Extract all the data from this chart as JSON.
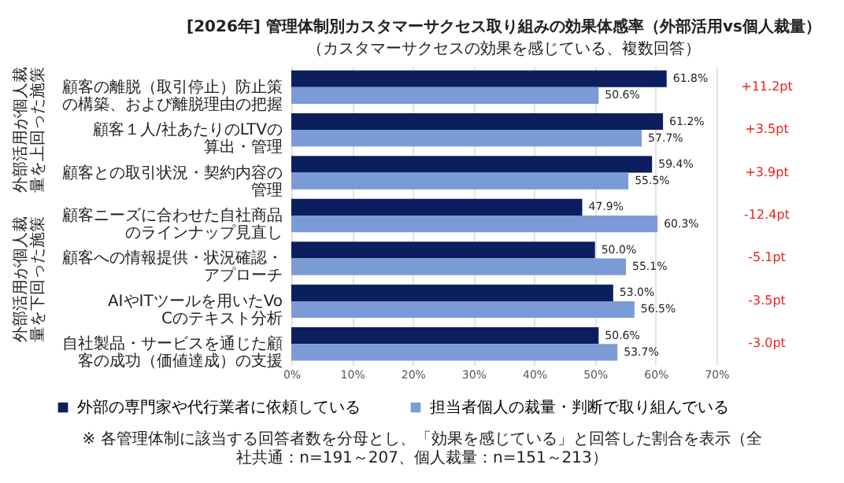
{
  "chart_data": {
    "type": "bar",
    "orientation": "horizontal",
    "title": "[2026年] 管理体制別カスタマーサクセス取り組みの効果体感率（外部活用vs個人裁量）",
    "subtitle": "（カスタマーサクセスの効果を感じている、複数回答）",
    "categories": [
      "顧客の離脱（取引停止）防止策の構築、および離脱理由の把握",
      "顧客１人/社あたりのLTVの算出・管理",
      "顧客との取引状況・契約内容の管理",
      "顧客ニーズに合わせた自社商品のラインナップ見直し",
      "顧客への情報提供・状況確認・アプローチ",
      "AIやITツールを用いたVoCのテキスト分析",
      "自社製品・サービスを通じた顧客の成功（価値達成）の支援"
    ],
    "series": [
      {
        "name": "外部の専門家や代行業者に依頼している",
        "color": "#0b1f5e",
        "values": [
          61.8,
          61.2,
          59.4,
          47.9,
          50.0,
          53.0,
          50.6
        ],
        "value_labels": [
          "61.8%",
          "61.2%",
          "59.4%",
          "47.9%",
          "50.0%",
          "53.0%",
          "50.6%"
        ]
      },
      {
        "name": "担当者個人の裁量・判断で取り組んでいる",
        "color": "#7b9bd6",
        "values": [
          50.6,
          57.7,
          55.5,
          60.3,
          55.1,
          56.5,
          53.7
        ],
        "value_labels": [
          "50.6%",
          "57.7%",
          "55.5%",
          "60.3%",
          "55.1%",
          "56.5%",
          "53.7%"
        ]
      }
    ],
    "xlim": [
      0,
      70
    ],
    "xticks": [
      {
        "value": 0,
        "label": "0%"
      },
      {
        "value": 10,
        "label": "10%"
      },
      {
        "value": 20,
        "label": "20%"
      },
      {
        "value": 30,
        "label": "30%"
      },
      {
        "value": 40,
        "label": "40%"
      },
      {
        "value": 50,
        "label": "50%"
      },
      {
        "value": 60,
        "label": "60%"
      },
      {
        "value": 70,
        "label": "70%"
      }
    ],
    "grid": "x",
    "legend": "bottom",
    "annotations": [
      "+11.2pt",
      "+3.5pt",
      "+3.9pt",
      "-12.4pt",
      "-5.1pt",
      "-3.5pt",
      "-3.0pt",
      "外部活用が個人裁量を上回った施策",
      "外部活用が個人裁量を下回った施策",
      "※ 各管理体制に該当する回答者数を分母とし、「効果を感じている」と回答した割合を表示（全社共通：n=191～207、個人裁量：n=151～213）"
    ]
  }
}
